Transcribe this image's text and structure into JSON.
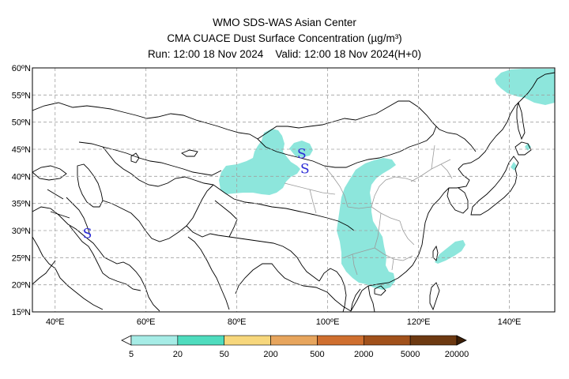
{
  "header": {
    "title": "WMO SDS-WAS Asian Center",
    "product": "CMA CUACE Dust Surface Concentration (µg/m³)",
    "run": "Run: 12:00 18 Nov 2024",
    "valid": "Valid: 12:00 18 Nov 2024(H+0)"
  },
  "axes": {
    "lat_labels": [
      "60ºN",
      "55ºN",
      "50ºN",
      "45ºN",
      "40ºN",
      "35ºN",
      "30ºN",
      "25ºN",
      "20ºN",
      "15ºN"
    ],
    "lon_labels": [
      "40ºE",
      "60ºE",
      "80ºE",
      "100ºE",
      "120ºE",
      "140ºE"
    ]
  },
  "map_markers": [
    {
      "label": "S",
      "lon": 94.3,
      "lat": 44.2
    },
    {
      "label": "S",
      "lon": 95.0,
      "lat": 41.4
    },
    {
      "label": "S",
      "lon": 47.1,
      "lat": 29.5
    }
  ],
  "colorbar": {
    "ticks": [
      "5",
      "20",
      "50",
      "200",
      "500",
      "2000",
      "5000",
      "20000"
    ],
    "colors": [
      "#a6ece6",
      "#4fdcbe",
      "#f7d77c",
      "#e7a55d",
      "#cf6f2f",
      "#a1511b",
      "#6d3911",
      "#3c1f07"
    ],
    "low_color": "#ffffff",
    "high_color": "#000000"
  },
  "colors": {
    "dust_fill": "#8de6dc",
    "marker": "#2b2bd6",
    "grid": "#a0a0a0"
  }
}
